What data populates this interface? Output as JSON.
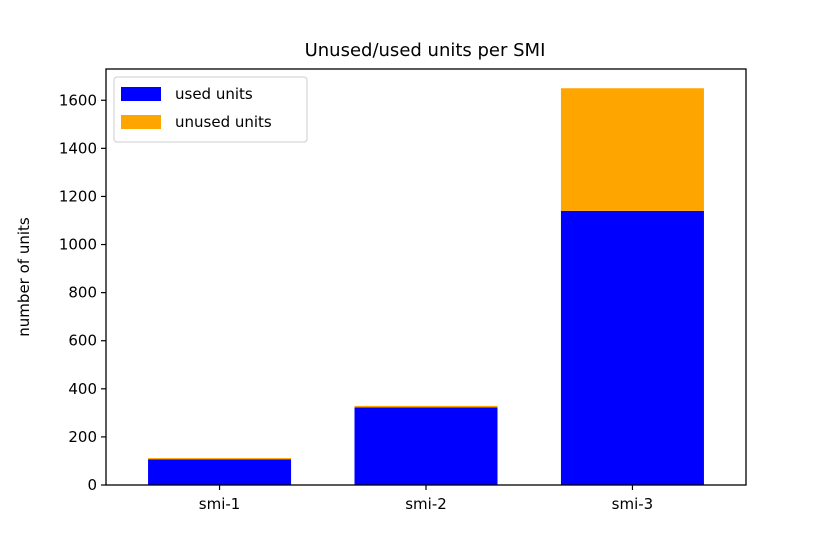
{
  "chart_data": {
    "type": "bar",
    "stacked": true,
    "title": "Unused/used units per SMI",
    "xlabel": "",
    "ylabel": "number of units",
    "categories": [
      "smi-1",
      "smi-2",
      "smi-3"
    ],
    "series": [
      {
        "name": "used units",
        "color": "#0000ff",
        "values": [
          107,
          323,
          1140
        ]
      },
      {
        "name": "unused units",
        "color": "#ffa500",
        "values": [
          5,
          6,
          510
        ]
      }
    ],
    "ylim": [
      0,
      1730
    ],
    "yticks": [
      0,
      200,
      400,
      600,
      800,
      1000,
      1200,
      1400,
      1600
    ],
    "grid": false,
    "legend_position": "top-left"
  }
}
